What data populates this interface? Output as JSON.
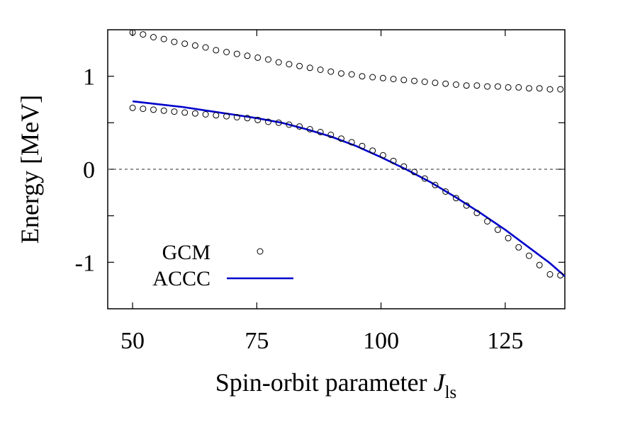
{
  "chart_data": {
    "type": "scatter",
    "xlabel": "Spin-orbit parameter ",
    "xlabel_italic": "J",
    "xlabel_sub": "ls",
    "ylabel": "Energy [MeV]",
    "xlim": [
      45,
      137
    ],
    "ylim": [
      -1.5,
      1.5
    ],
    "xticks": [
      50,
      75,
      100,
      125
    ],
    "yticks": [
      1,
      0,
      -1
    ],
    "ytick_labels": [
      "1",
      "0",
      "-1"
    ],
    "zero_line": true,
    "legend_position": "bottom-left",
    "series": [
      {
        "name": "GCM",
        "style": "open-circle",
        "color": "#000000",
        "branches": [
          {
            "x": [
              50,
              52.1,
              54.2,
              56.3,
              58.4,
              60.5,
              62.6,
              64.7,
              66.8,
              68.9,
              71,
              73.1,
              75.2,
              77.3,
              79.4,
              81.5,
              83.6,
              85.7,
              87.8,
              89.9,
              92,
              94.1,
              96.2,
              98.3,
              100.4,
              102.5,
              104.6,
              106.7,
              108.8,
              110.9,
              113,
              115.1,
              117.2,
              119.3,
              121.4,
              123.5,
              125.6,
              127.7,
              129.8,
              131.9,
              134,
              136.1
            ],
            "y": [
              1.47,
              1.45,
              1.42,
              1.4,
              1.37,
              1.35,
              1.33,
              1.31,
              1.28,
              1.26,
              1.24,
              1.22,
              1.2,
              1.18,
              1.15,
              1.13,
              1.11,
              1.09,
              1.07,
              1.05,
              1.03,
              1.02,
              1.0,
              0.99,
              0.98,
              0.97,
              0.96,
              0.95,
              0.94,
              0.93,
              0.92,
              0.91,
              0.9,
              0.9,
              0.89,
              0.89,
              0.88,
              0.88,
              0.87,
              0.87,
              0.86,
              0.86
            ]
          },
          {
            "x": [
              50,
              52.1,
              54.2,
              56.3,
              58.4,
              60.5,
              62.6,
              64.7,
              66.8,
              68.9,
              71,
              73.1,
              75.2,
              77.3,
              79.4,
              81.5,
              83.6,
              85.7,
              87.8,
              89.9,
              92,
              94.1,
              96.2,
              98.3,
              100.4,
              102.5,
              104.6,
              106.7,
              108.8,
              110.9,
              113,
              115.1,
              117.2,
              119.3,
              121.4,
              123.5,
              125.6,
              127.7,
              129.8,
              131.9,
              134,
              136.1
            ],
            "y": [
              0.66,
              0.65,
              0.64,
              0.63,
              0.62,
              0.61,
              0.6,
              0.59,
              0.58,
              0.57,
              0.56,
              0.55,
              0.53,
              0.51,
              0.5,
              0.48,
              0.46,
              0.43,
              0.4,
              0.37,
              0.33,
              0.29,
              0.25,
              0.2,
              0.15,
              0.09,
              0.03,
              -0.03,
              -0.1,
              -0.17,
              -0.24,
              -0.31,
              -0.39,
              -0.47,
              -0.56,
              -0.65,
              -0.74,
              -0.84,
              -0.93,
              -1.03,
              -1.13,
              -1.14
            ]
          }
        ]
      },
      {
        "name": "ACCC",
        "style": "line",
        "color": "#0000cc",
        "x": [
          50,
          55,
          60,
          65,
          70,
          75,
          80,
          85,
          90,
          95,
          100,
          105,
          110,
          115,
          120,
          125,
          130,
          134,
          137
        ],
        "y": [
          0.73,
          0.7,
          0.67,
          0.63,
          0.59,
          0.55,
          0.5,
          0.43,
          0.35,
          0.25,
          0.13,
          0.0,
          -0.14,
          -0.3,
          -0.47,
          -0.65,
          -0.85,
          -1.01,
          -1.15
        ]
      }
    ]
  }
}
